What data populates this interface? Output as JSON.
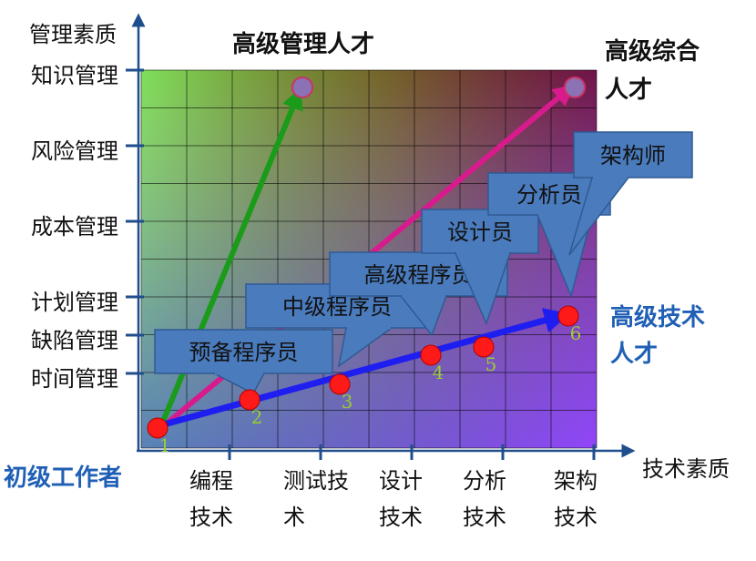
{
  "axes": {
    "y_title": "管理素质",
    "x_title": "技术素质",
    "origin_label": "初级工作者",
    "y_ticks": [
      "知识管理",
      "风险管理",
      "成本管理",
      "计划管理",
      "缺陷管理",
      "时间管理"
    ],
    "x_ticks": [
      {
        "line1": "编程",
        "line2": "技术"
      },
      {
        "line1": "测试技",
        "line2": "术"
      },
      {
        "line1": "设计",
        "line2": "技术"
      },
      {
        "line1": "分析",
        "line2": "技术"
      },
      {
        "line1": "架构",
        "line2": "技术"
      }
    ]
  },
  "corner_labels": {
    "management": "高级管理人才",
    "comprehensive_line1": "高级综合",
    "comprehensive_line2": "人才",
    "technical_line1": "高级技术",
    "technical_line2": "人才"
  },
  "roles": [
    "预备程序员",
    "中级程序员",
    "高级程序员",
    "设计员",
    "分析员",
    "架构师"
  ],
  "milestones": [
    "1",
    "2",
    "3",
    "4",
    "5",
    "6"
  ],
  "colors": {
    "axis": "#1f4e8c",
    "management_arrow": "#1a9b1a",
    "comprehensive_arrow": "#d81b8c",
    "technical_arrow": "#1e1ef0",
    "milestone_dot": "#ff1a1a",
    "callout_fill": "#4a7bbd",
    "callout_stroke": "#2f5a93",
    "milestone_number": "#9acd32",
    "grid_line": "#000000"
  }
}
